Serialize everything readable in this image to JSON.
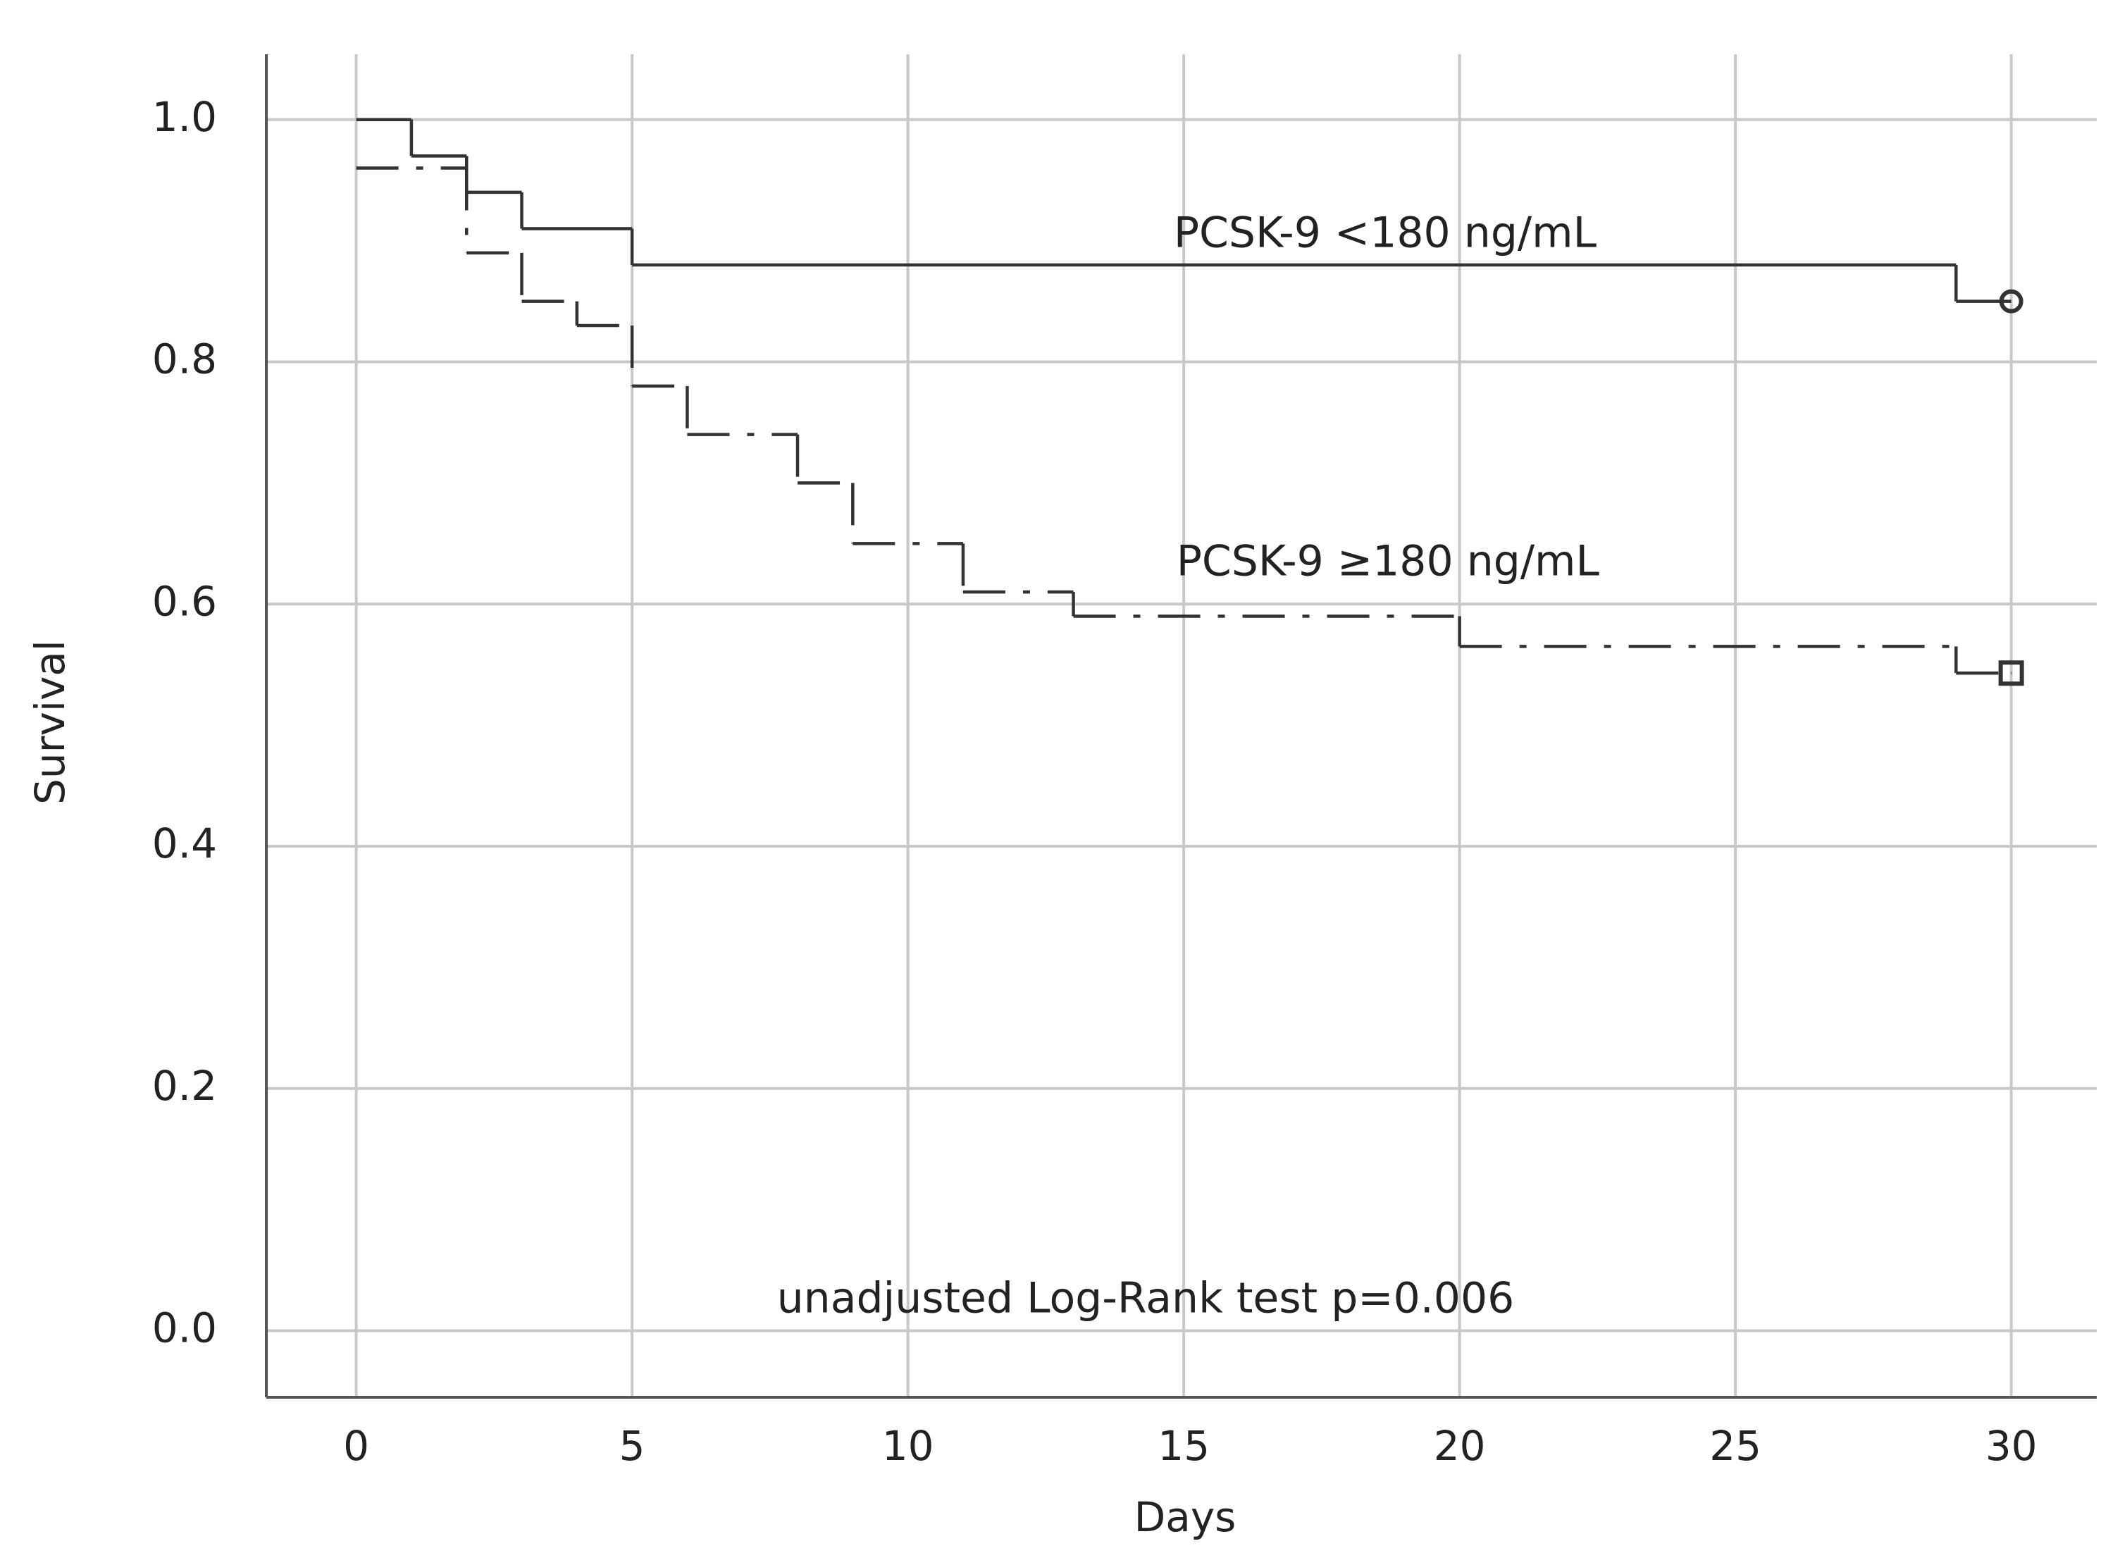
{
  "chart_data": {
    "type": "line",
    "step": "post",
    "xlabel": "Days",
    "ylabel": "Survival",
    "xlim": [
      -1.63,
      31.55
    ],
    "ylim": [
      -0.055,
      1.054
    ],
    "xticks": [
      0,
      5,
      10,
      15,
      20,
      25,
      30
    ],
    "yticks": [
      {
        "value": 0,
        "label": "0.0"
      },
      0.2,
      0.4,
      0.6,
      0.8,
      {
        "value": 1,
        "label": "1.0"
      }
    ],
    "grid": true,
    "series": [
      {
        "name": "PCSK-9 <180 ng/mL",
        "color": "#333333",
        "dash": "solid",
        "marker": "circle",
        "x": [
          0,
          1,
          2,
          3,
          5,
          29,
          30
        ],
        "values": [
          1.0,
          0.97,
          0.94,
          0.91,
          0.88,
          0.85,
          0.85
        ]
      },
      {
        "name": "PCSK-9 ≥180 ng/mL",
        "color": "#333333",
        "dash": "dashdot",
        "marker": "square",
        "x": [
          0,
          2,
          3,
          4,
          5,
          6,
          8,
          9,
          11,
          13,
          20,
          29,
          30
        ],
        "values": [
          0.96,
          0.89,
          0.85,
          0.83,
          0.78,
          0.74,
          0.7,
          0.65,
          0.61,
          0.59,
          0.565,
          0.543,
          0.543
        ]
      }
    ],
    "annotations": [
      "unadjusted Log-Rank test p=0.006"
    ]
  }
}
